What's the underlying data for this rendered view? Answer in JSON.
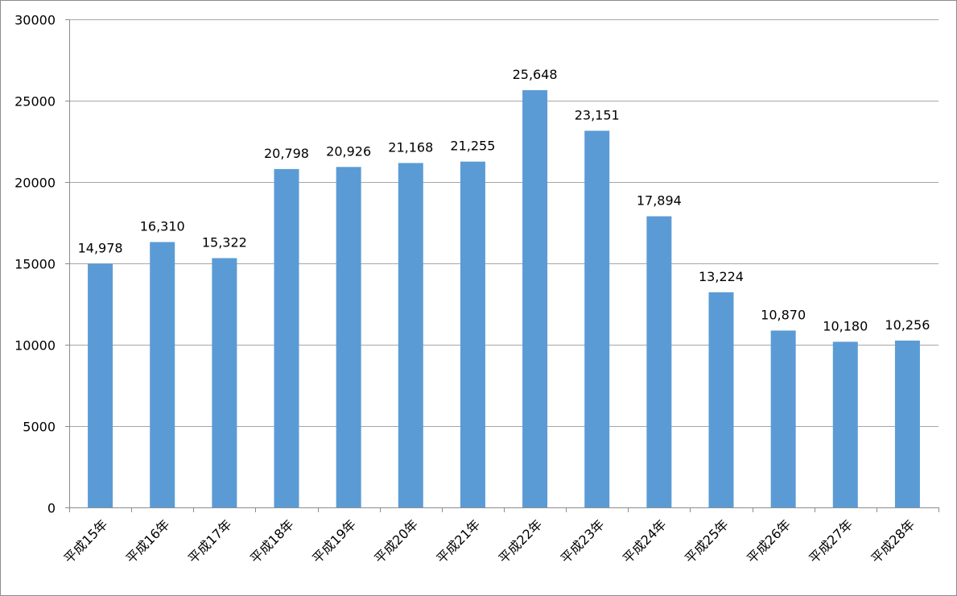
{
  "chart_data": {
    "type": "bar",
    "title": "",
    "xlabel": "",
    "ylabel": "",
    "categories": [
      "平成15年",
      "平成16年",
      "平成17年",
      "平成18年",
      "平成19年",
      "平成20年",
      "平成21年",
      "平成22年",
      "平成23年",
      "平成24年",
      "平成25年",
      "平成26年",
      "平成27年",
      "平成28年"
    ],
    "values": [
      14978,
      16310,
      15322,
      20798,
      20926,
      21168,
      21255,
      25648,
      23151,
      17894,
      13224,
      10870,
      10180,
      10256
    ],
    "data_labels": [
      "14,978",
      "16,310",
      "15,322",
      "20,798",
      "20,926",
      "21,168",
      "21,255",
      "25,648",
      "23,151",
      "17,894",
      "13,224",
      "10,870",
      "10,180",
      "10,256"
    ],
    "ylim": [
      0,
      30000
    ],
    "yticks": [
      0,
      5000,
      10000,
      15000,
      20000,
      25000,
      30000
    ],
    "ytick_labels": [
      "0",
      "5000",
      "10000",
      "15000",
      "20000",
      "25000",
      "30000"
    ],
    "grid": true,
    "legend": "none",
    "bar_color": "#5b9bd5",
    "gridline_color": "#a6a6a6"
  }
}
